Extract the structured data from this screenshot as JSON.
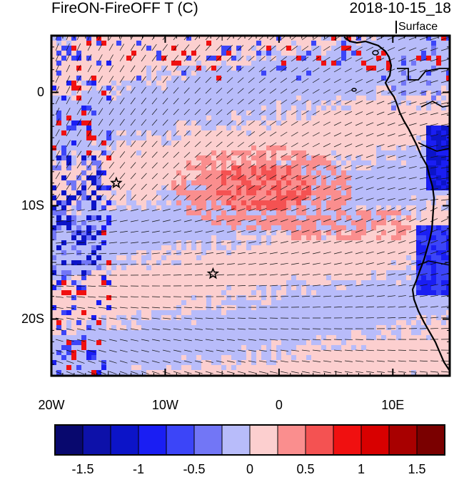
{
  "title": {
    "left": "FireON-FireOFF T (C)",
    "right": "2018-10-15_18",
    "level": "Surface"
  },
  "map": {
    "region": "Southeast Atlantic / West Africa",
    "lon_range": [
      -20,
      15
    ],
    "lat_range": [
      -25,
      5
    ],
    "lon_ticks": [
      {
        "value": -20,
        "label": "20W"
      },
      {
        "value": -10,
        "label": "10W"
      },
      {
        "value": 0,
        "label": "0"
      },
      {
        "value": 10,
        "label": "10E"
      }
    ],
    "lat_ticks": [
      {
        "value": 0,
        "label": "0"
      },
      {
        "value": -10,
        "label": "10S"
      },
      {
        "value": -20,
        "label": "20S"
      }
    ],
    "markers": [
      {
        "name": "star-marker-1",
        "lon": -14.3,
        "lat": -8.0
      },
      {
        "name": "star-marker-2",
        "lon": -5.8,
        "lat": -16.0
      }
    ],
    "field": "temperature difference",
    "wind_vectors": true
  },
  "colorbar": {
    "colors": [
      "#08086e",
      "#0d11a9",
      "#0c14c8",
      "#1a1ef3",
      "#3c45f8",
      "#7276f6",
      "#b8bcfa",
      "#fccfcf",
      "#fa8e8e",
      "#f45252",
      "#f01010",
      "#d80000",
      "#a80000",
      "#7a0000"
    ],
    "labels": [
      "-1.5",
      "-1",
      "-0.5",
      "0",
      "0.5",
      "1",
      "1.5"
    ],
    "label_values": [
      -1.5,
      -1,
      -0.5,
      0,
      0.5,
      1,
      1.5
    ],
    "min": -1.75,
    "max": 1.75
  }
}
